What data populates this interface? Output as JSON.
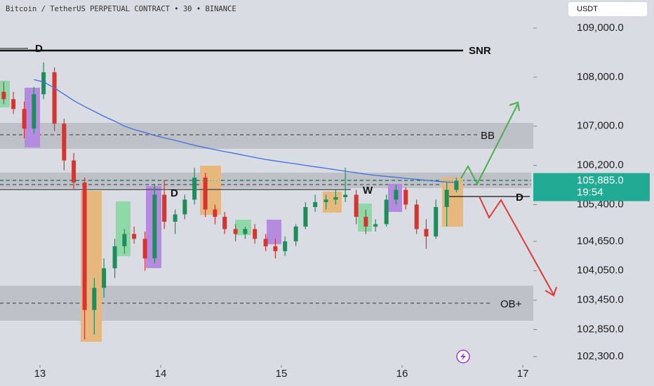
{
  "chart_data": {
    "type": "candlestick",
    "title": "Bitcoin / TetherUS PERPETUAL CONTRACT • 30 • BINANCE",
    "currency": "USDT",
    "up_color": "#1f8c5c",
    "down_color": "#d7332f",
    "x": [
      12.7,
      12.78,
      12.87,
      12.95,
      13.03,
      13.12,
      13.2,
      13.28,
      13.37,
      13.45,
      13.53,
      13.62,
      13.7,
      13.78,
      13.87,
      13.95,
      14.03,
      14.12,
      14.2,
      14.28,
      14.37,
      14.45,
      14.53,
      14.62,
      14.7,
      14.78,
      14.87,
      14.95,
      15.03,
      15.12,
      15.2,
      15.28,
      15.37,
      15.45,
      15.53,
      15.62,
      15.7,
      15.78,
      15.87,
      15.95,
      16.03,
      16.12,
      16.2,
      16.28,
      16.37,
      16.45
    ],
    "open": [
      107700,
      107550,
      107350,
      106950,
      107650,
      108100,
      107050,
      106300,
      105850,
      103250,
      103700,
      104100,
      104550,
      104800,
      104700,
      104300,
      105600,
      105050,
      105200,
      105500,
      105950,
      105300,
      105150,
      104900,
      104800,
      104900,
      104700,
      104550,
      104450,
      104650,
      104950,
      105350,
      105450,
      105500,
      105550,
      105600,
      105150,
      104950,
      105000,
      105500,
      105700,
      105400,
      104900,
      104750,
      105350,
      105700
    ],
    "high": [
      107900,
      107700,
      107500,
      107800,
      108300,
      108200,
      107150,
      106450,
      105950,
      103900,
      104300,
      104700,
      104900,
      104950,
      104850,
      105800,
      105900,
      105300,
      105600,
      106150,
      106050,
      105400,
      105250,
      105000,
      104950,
      105000,
      104800,
      104700,
      104750,
      105000,
      105450,
      105600,
      105600,
      105700,
      106150,
      105700,
      105300,
      105100,
      105600,
      105800,
      105750,
      105500,
      105100,
      105500,
      105850,
      105950
    ],
    "low": [
      107450,
      107250,
      106750,
      106850,
      107550,
      106900,
      106100,
      105700,
      102650,
      102750,
      103500,
      103900,
      104400,
      104600,
      104050,
      104200,
      104900,
      104800,
      105100,
      105400,
      105150,
      105000,
      104800,
      104650,
      104700,
      104600,
      104450,
      104300,
      104350,
      104550,
      104900,
      105250,
      105300,
      105400,
      105450,
      105000,
      104800,
      104850,
      104950,
      105400,
      105300,
      104800,
      104500,
      104700,
      104950,
      105650
    ],
    "close": [
      107550,
      107350,
      106950,
      107650,
      108100,
      107050,
      106300,
      105850,
      103250,
      103700,
      104100,
      104550,
      104800,
      104700,
      104300,
      105600,
      105050,
      105200,
      105500,
      105950,
      105300,
      105150,
      104900,
      104800,
      104900,
      104700,
      104550,
      104450,
      104650,
      104950,
      105350,
      105450,
      105500,
      105550,
      105600,
      105150,
      104950,
      105000,
      105500,
      105700,
      105400,
      104900,
      104750,
      105350,
      105700,
      105885
    ],
    "moving_average": {
      "color": "#3d6fe0",
      "values": [
        null,
        null,
        null,
        107950,
        107900,
        107780,
        107650,
        107520,
        107400,
        107300,
        107200,
        107100,
        107000,
        106930,
        106870,
        106810,
        106760,
        106710,
        106660,
        106610,
        106560,
        106520,
        106480,
        106440,
        106400,
        106360,
        106320,
        106290,
        106260,
        106230,
        106200,
        106170,
        106140,
        106110,
        106080,
        106050,
        106020,
        105995,
        105975,
        105955,
        105935,
        105915,
        105895,
        105875,
        105860,
        105850
      ]
    },
    "xlim": [
      12.669,
      17.087
    ],
    "ylim": [
      102128,
      109573
    ],
    "xticks": [
      13,
      14,
      15,
      16,
      17
    ],
    "yticks": [
      {
        "value": 109000,
        "label": "109,000.0"
      },
      {
        "value": 108000,
        "label": "108,000.0"
      },
      {
        "value": 107000,
        "label": "107,000.0"
      },
      {
        "value": 106200,
        "label": "106,200.0"
      },
      {
        "value": 105400,
        "label": "105,400.0"
      },
      {
        "value": 104650,
        "label": "104,650.0"
      },
      {
        "value": 104050,
        "label": "104,050.0"
      },
      {
        "value": 103450,
        "label": "103,450.0"
      },
      {
        "value": 102850,
        "label": "102,850.0"
      },
      {
        "value": 102300,
        "label": "102,300.0"
      }
    ],
    "last_price": {
      "value": 105885,
      "label": "105,885.0",
      "color": "#22ab94"
    },
    "countdown": "19:54",
    "annotations": {
      "snr_d": "D",
      "snr": "SNR",
      "bb": "BB",
      "mid_d": "D",
      "w": "W",
      "right_d": "D",
      "ob": "OB+"
    }
  }
}
